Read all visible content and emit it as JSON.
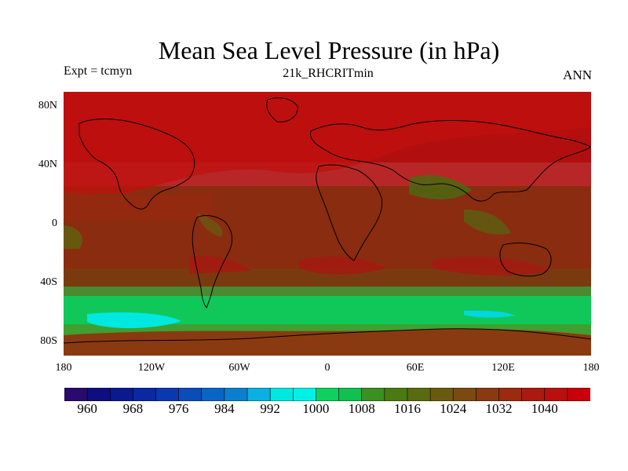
{
  "title": "Mean Sea Level Pressure (in hPa)",
  "left_label": "Expt = tcmyn",
  "center_label": "21k_RHCRITmin",
  "right_label": "ANN",
  "lat_ticks": [
    "80N",
    "40N",
    "0",
    "40S",
    "80S"
  ],
  "lon_ticks": [
    "180",
    "120W",
    "60W",
    "0",
    "60E",
    "120E",
    "180"
  ],
  "colorbar": {
    "colors": [
      "#2a0a6e",
      "#0e0e7e",
      "#0a1a8e",
      "#0a28a0",
      "#0a38ae",
      "#0a4cb8",
      "#0a64c4",
      "#0a80cc",
      "#0ab0e0",
      "#00e8e0",
      "#00f0e8",
      "#10d060",
      "#10c050",
      "#3a9020",
      "#4a7a10",
      "#5a6a10",
      "#6a5a10",
      "#7a4a10",
      "#8a3a10",
      "#9a2a10",
      "#aa1a10",
      "#b8100e",
      "#c8000c"
    ],
    "labels": [
      "960",
      "968",
      "976",
      "984",
      "992",
      "1000",
      "1008",
      "1016",
      "1024",
      "1032",
      "1040"
    ]
  },
  "chart_data": {
    "type": "heatmap",
    "title": "Mean Sea Level Pressure (in hPa)",
    "subtitle": "21k_RHCRITmin",
    "xlabel": "",
    "ylabel": "",
    "x_range": [
      -180,
      180
    ],
    "y_range": [
      -90,
      90
    ],
    "colorbar_ticks": [
      960,
      968,
      976,
      984,
      992,
      1000,
      1008,
      1016,
      1024,
      1032,
      1040
    ],
    "zonal_bands": [
      {
        "lat": [
          60,
          90
        ],
        "value": 1036
      },
      {
        "lat": [
          20,
          60
        ],
        "value": 1034
      },
      {
        "lat": [
          -20,
          20
        ],
        "value": 1024
      },
      {
        "lat": [
          -40,
          -20
        ],
        "value": 1030
      },
      {
        "lat": [
          -50,
          -40
        ],
        "value": 1022
      },
      {
        "lat": [
          -55,
          -50
        ],
        "value": 1012
      },
      {
        "lat": [
          -65,
          -55
        ],
        "value": 1002
      },
      {
        "lat": [
          -70,
          -65
        ],
        "value": 1008
      },
      {
        "lat": [
          -90,
          -70
        ],
        "value": 1024
      }
    ]
  }
}
